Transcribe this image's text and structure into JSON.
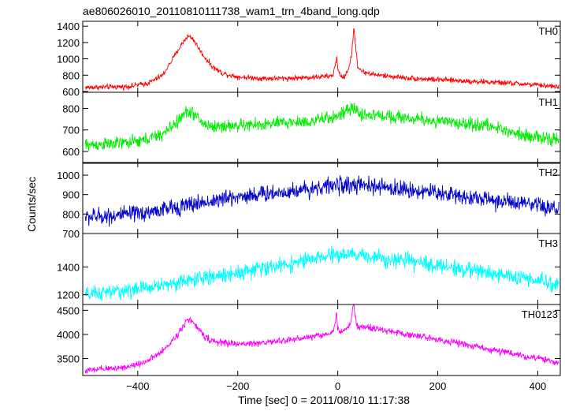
{
  "chart_data": {
    "type": "line",
    "title": "ae806026010_20110810111738_wam1_trn_4band_long.qdp",
    "xlabel": "Time [sec] 0 = 2011/08/10 11:17:38",
    "ylabel": "Counts/sec",
    "xlim": [
      -510,
      445
    ],
    "x_ticks": [
      -400,
      -200,
      0,
      200,
      400
    ],
    "x_tick_labels": [
      "−400",
      "−200",
      "0",
      "200",
      "400"
    ],
    "grid": false,
    "legend": "none",
    "panels": [
      {
        "label": "TH0",
        "color": "#ff0000",
        "ylim": [
          590,
          1460
        ],
        "y_ticks": [
          600,
          800,
          1000,
          1200,
          1400
        ],
        "y_tick_labels": [
          "600",
          "800",
          "1000",
          "1200",
          "1400"
        ],
        "noise": 28,
        "x": [
          -500,
          -420,
          -380,
          -350,
          -330,
          -310,
          -300,
          -290,
          -270,
          -250,
          -230,
          -200,
          -150,
          -100,
          -50,
          -10,
          -2,
          0,
          10,
          20,
          28,
          32,
          36,
          40,
          50,
          80,
          150,
          250,
          350,
          440
        ],
        "values": [
          650,
          660,
          700,
          800,
          1000,
          1200,
          1280,
          1250,
          1050,
          900,
          820,
          780,
          760,
          760,
          775,
          790,
          1020,
          860,
          760,
          850,
          1050,
          1380,
          1150,
          900,
          840,
          800,
          760,
          730,
          700,
          660
        ]
      },
      {
        "label": "TH1",
        "color": "#00ee00",
        "ylim": [
          545,
          875
        ],
        "y_ticks": [
          600,
          700,
          800
        ],
        "y_tick_labels": [
          "600",
          "700",
          "800"
        ],
        "noise": 26,
        "x": [
          -500,
          -450,
          -400,
          -350,
          -320,
          -300,
          -290,
          -270,
          -250,
          -200,
          -150,
          -100,
          -50,
          0,
          30,
          50,
          100,
          200,
          300,
          350,
          400,
          440
        ],
        "values": [
          630,
          635,
          645,
          680,
          740,
          790,
          780,
          730,
          715,
          720,
          725,
          735,
          740,
          765,
          800,
          770,
          765,
          740,
          720,
          690,
          665,
          650
        ]
      },
      {
        "label": "TH2",
        "color": "#0000cc",
        "ylim": [
          700,
          1065
        ],
        "y_ticks": [
          700,
          800,
          900,
          1000
        ],
        "y_tick_labels": [
          "700",
          "800",
          "900",
          "1000"
        ],
        "noise": 38,
        "x": [
          -500,
          -400,
          -300,
          -200,
          -100,
          0,
          50,
          100,
          200,
          300,
          400,
          440
        ],
        "values": [
          785,
          800,
          845,
          890,
          915,
          950,
          945,
          935,
          910,
          875,
          840,
          825
        ]
      },
      {
        "label": "TH3",
        "color": "#00ffff",
        "ylim": [
          1130,
          1640
        ],
        "y_ticks": [
          1200,
          1400
        ],
        "y_tick_labels": [
          "1200",
          "1400"
        ],
        "noise": 48,
        "x": [
          -500,
          -400,
          -300,
          -200,
          -100,
          0,
          50,
          100,
          200,
          300,
          400,
          440
        ],
        "values": [
          1200,
          1240,
          1300,
          1360,
          1420,
          1490,
          1480,
          1460,
          1410,
          1360,
          1300,
          1270
        ]
      },
      {
        "label": "TH0123",
        "color": "#ff00ff",
        "ylim": [
          3150,
          4620
        ],
        "y_ticks": [
          3500,
          4000,
          4500
        ],
        "y_tick_labels": [
          "3500",
          "4000",
          "4500"
        ],
        "noise": 60,
        "x": [
          -500,
          -420,
          -380,
          -350,
          -320,
          -300,
          -290,
          -270,
          -250,
          -200,
          -150,
          -100,
          -50,
          -10,
          -2,
          0,
          10,
          25,
          32,
          36,
          40,
          60,
          100,
          200,
          300,
          400,
          440
        ],
        "values": [
          3250,
          3330,
          3450,
          3650,
          4000,
          4330,
          4250,
          4000,
          3850,
          3800,
          3830,
          3880,
          3960,
          4030,
          4430,
          4100,
          4050,
          4200,
          4650,
          4300,
          4150,
          4150,
          4070,
          3900,
          3700,
          3500,
          3420
        ]
      }
    ]
  }
}
